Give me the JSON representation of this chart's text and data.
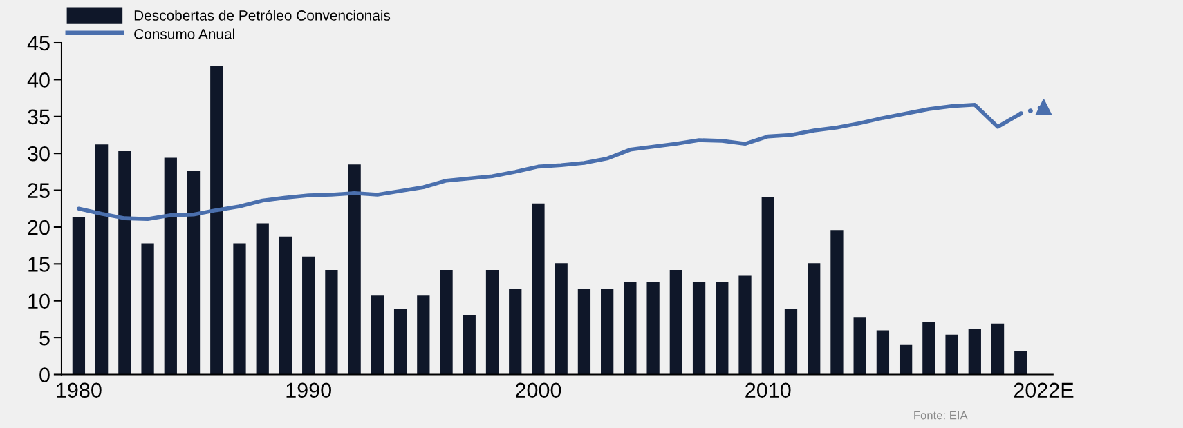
{
  "chart_data": {
    "type": "bar",
    "categories": [
      "1980",
      null,
      null,
      null,
      null,
      null,
      null,
      null,
      null,
      null,
      "1990",
      null,
      null,
      null,
      null,
      null,
      null,
      null,
      null,
      null,
      "2000",
      null,
      null,
      null,
      null,
      null,
      null,
      null,
      null,
      null,
      "2010",
      null,
      null,
      null,
      null,
      null,
      null,
      null,
      null,
      null,
      null,
      null,
      "2022E"
    ],
    "series": [
      {
        "name": "Descobertas de Petróleo Convencionais",
        "color": "#0f1729",
        "values": [
          21.4,
          31.2,
          30.3,
          17.8,
          29.4,
          27.6,
          41.9,
          17.8,
          20.5,
          18.7,
          16.0,
          14.2,
          28.5,
          10.7,
          8.9,
          10.7,
          14.2,
          8.0,
          14.2,
          11.6,
          23.2,
          15.1,
          11.6,
          11.6,
          12.5,
          12.5,
          14.2,
          12.5,
          12.5,
          13.4,
          24.1,
          8.9,
          15.1,
          19.6,
          7.8,
          6.0,
          4.0,
          7.1,
          5.4,
          6.2,
          6.9,
          3.2,
          null
        ]
      },
      {
        "name": "Consumo Anual",
        "type": "line",
        "color": "#4a6fad",
        "line_style": "solid",
        "values": [
          22.5,
          21.8,
          21.2,
          21.1,
          21.6,
          21.7,
          22.3,
          22.8,
          23.6,
          24.0,
          24.3,
          24.4,
          24.6,
          24.4,
          24.9,
          25.4,
          26.3,
          26.6,
          26.9,
          27.5,
          28.2,
          28.4,
          28.7,
          29.3,
          30.5,
          30.9,
          31.3,
          31.8,
          31.7,
          31.3,
          32.3,
          32.5,
          33.1,
          33.5,
          34.1,
          34.8,
          35.4,
          36.0,
          36.4,
          36.6,
          33.6,
          35.4,
          null
        ]
      },
      {
        "type": "line",
        "color": "#4a6fad",
        "line_style": "dotted",
        "values": [
          null,
          null,
          null,
          null,
          null,
          null,
          null,
          null,
          null,
          null,
          null,
          null,
          null,
          null,
          null,
          null,
          null,
          null,
          null,
          null,
          null,
          null,
          null,
          null,
          null,
          null,
          null,
          null,
          null,
          null,
          null,
          null,
          null,
          null,
          null,
          null,
          null,
          null,
          null,
          null,
          null,
          35.4,
          36.3
        ]
      },
      {
        "type": "scatter",
        "color": "#4a6fad",
        "marker": "triangle",
        "values": [
          null,
          null,
          null,
          null,
          null,
          null,
          null,
          null,
          null,
          null,
          null,
          null,
          null,
          null,
          null,
          null,
          null,
          null,
          null,
          null,
          null,
          null,
          null,
          null,
          null,
          null,
          null,
          null,
          null,
          null,
          null,
          null,
          null,
          null,
          null,
          null,
          null,
          null,
          null,
          null,
          null,
          null,
          36.3
        ]
      }
    ],
    "ylim": [
      0,
      45
    ],
    "yticks": [
      0,
      5,
      10,
      15,
      20,
      25,
      30,
      35,
      40,
      45
    ],
    "grid": false,
    "legend": "top left",
    "annotations": [
      "Fonte: EIA"
    ]
  }
}
